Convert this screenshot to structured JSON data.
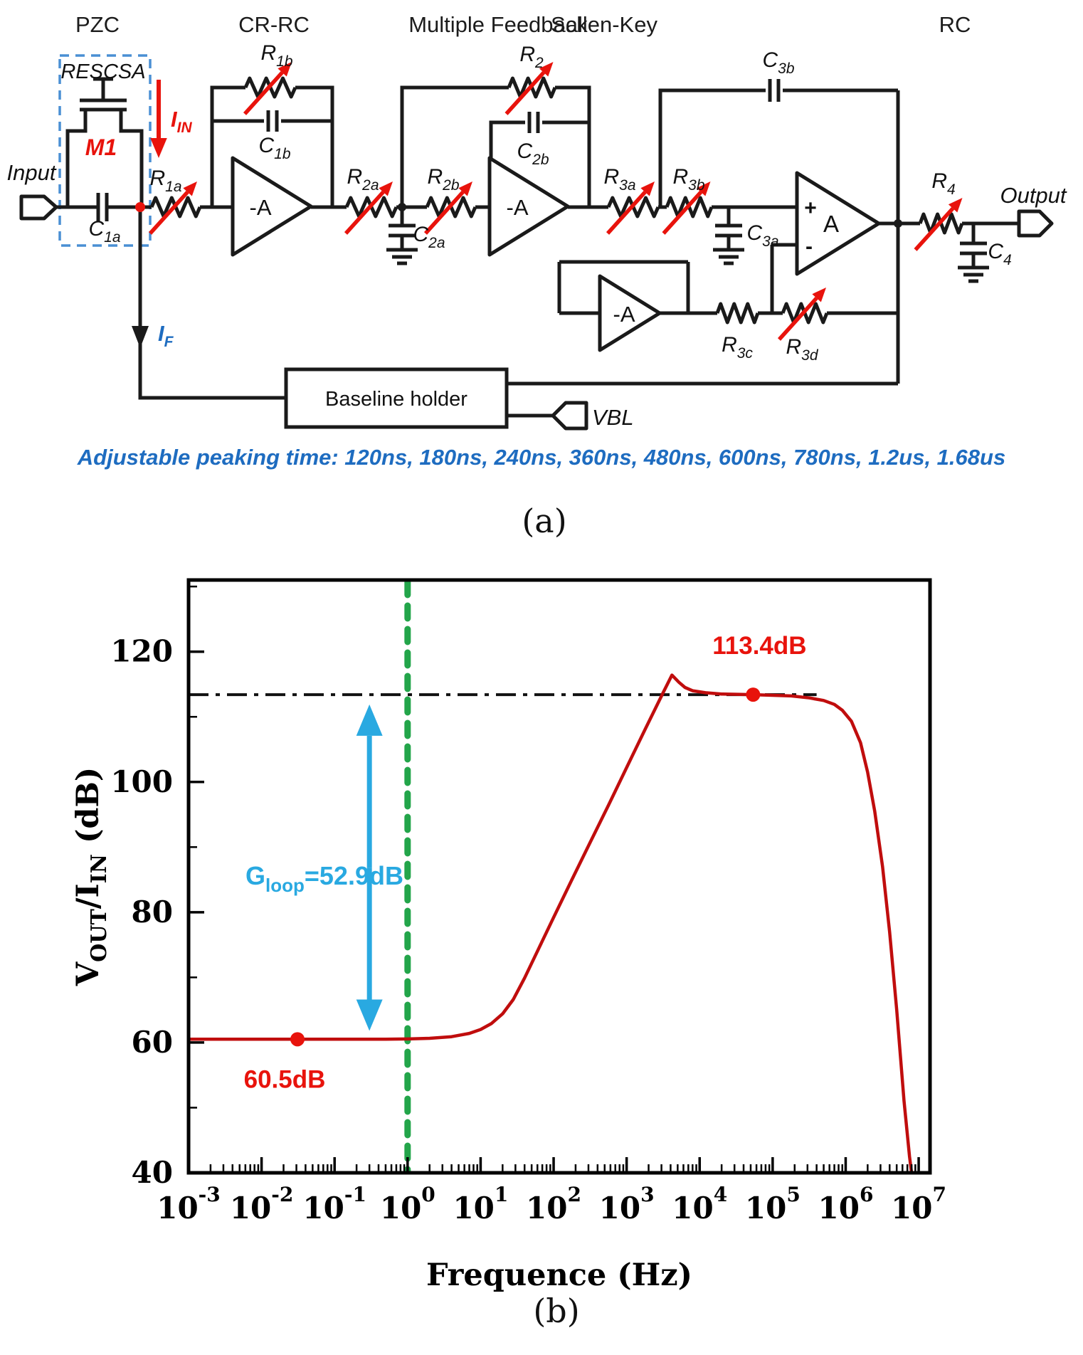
{
  "figure": {
    "panel_a_label": "(a)",
    "panel_b_label": "(b)"
  },
  "circuit": {
    "stages": {
      "pzc": "PZC",
      "crrc": "CR-RC",
      "mfb": "Multiple Feedback",
      "sk": "Sallen-Key",
      "rc": "RC"
    },
    "terminals": {
      "input": "Input",
      "output": "Output",
      "vbl": "VBL"
    },
    "blocks": {
      "rescsa": "RESCSA",
      "m1": "M1",
      "baseline_holder": "Baseline holder"
    },
    "currents": {
      "iin": {
        "main": "I",
        "sub": "IN"
      },
      "if": {
        "main": "I",
        "sub": "F"
      }
    },
    "amps": {
      "crrc": "-A",
      "mfb": "-A",
      "buffer": "-A",
      "sk": "A",
      "sk_plus": "+",
      "sk_minus": "-"
    },
    "components": {
      "c1a": {
        "main": "C",
        "sub": "1a"
      },
      "r1a": {
        "main": "R",
        "sub": "1a"
      },
      "r1b": {
        "main": "R",
        "sub": "1b"
      },
      "c1b": {
        "main": "C",
        "sub": "1b"
      },
      "r2a": {
        "main": "R",
        "sub": "2a"
      },
      "c2a": {
        "main": "C",
        "sub": "2a"
      },
      "r2b": {
        "main": "R",
        "sub": "2b"
      },
      "r2": {
        "main": "R",
        "sub": "2"
      },
      "c2b": {
        "main": "C",
        "sub": "2b"
      },
      "r3a": {
        "main": "R",
        "sub": "3a"
      },
      "r3b": {
        "main": "R",
        "sub": "3b"
      },
      "c3a": {
        "main": "C",
        "sub": "3a"
      },
      "c3b": {
        "main": "C",
        "sub": "3b"
      },
      "r3c": {
        "main": "R",
        "sub": "3c"
      },
      "r3d": {
        "main": "R",
        "sub": "3d"
      },
      "r4": {
        "main": "R",
        "sub": "4"
      },
      "c4": {
        "main": "C",
        "sub": "4"
      }
    },
    "caption": "Adjustable peaking time: 120ns, 180ns, 240ns, 360ns, 480ns, 600ns, 780ns, 1.2us, 1.68us",
    "colors": {
      "wire": "#1a1a1a",
      "red": "#e8130c",
      "blue_text": "#1e6cc0",
      "dashed_box": "#4a8fd4"
    }
  },
  "chart_data": {
    "type": "line",
    "title": "",
    "xlabel": "Frequence (Hz)",
    "ylabel": "VOUT/IIN (dB)",
    "ylabel_parts": [
      {
        "t": "V"
      },
      {
        "t": "OUT",
        "sub": true
      },
      {
        "t": "/I"
      },
      {
        "t": "IN",
        "sub": true
      },
      {
        "t": " (dB)"
      }
    ],
    "x_scale": "log",
    "tick_base": "10",
    "xticks_exponents": [
      -3,
      -2,
      -1,
      0,
      1,
      2,
      3,
      4,
      5,
      6,
      7
    ],
    "yticks": [
      40,
      60,
      80,
      100,
      120
    ],
    "y_minor_step": 10,
    "xlim": [
      0.001,
      14300000
    ],
    "ylim": [
      40,
      131
    ],
    "grid": "off",
    "legend": "none",
    "series": [
      {
        "name": "VOUT/IIN transfer function",
        "color": "#c00d0d",
        "points": [
          [
            0.001,
            60.5
          ],
          [
            0.01,
            60.5
          ],
          [
            0.1,
            60.5
          ],
          [
            0.5,
            60.5
          ],
          [
            1,
            60.55
          ],
          [
            2,
            60.65
          ],
          [
            4,
            60.9
          ],
          [
            7,
            61.4
          ],
          [
            10,
            62.0
          ],
          [
            14,
            62.9
          ],
          [
            20,
            64.4
          ],
          [
            28,
            66.6
          ],
          [
            40,
            69.9
          ],
          [
            63,
            74.5
          ],
          [
            100,
            79.2
          ],
          [
            178,
            85.0
          ],
          [
            316,
            90.7
          ],
          [
            562,
            96.4
          ],
          [
            1000,
            102.2
          ],
          [
            1780,
            108.0
          ],
          [
            3160,
            113.7
          ],
          [
            4170,
            116.4
          ],
          [
            5200,
            115.3
          ],
          [
            6300,
            114.5
          ],
          [
            8000,
            114.0
          ],
          [
            12000,
            113.7
          ],
          [
            20000,
            113.5
          ],
          [
            32000,
            113.45
          ],
          [
            54000,
            113.4
          ],
          [
            100000,
            113.3
          ],
          [
            180000,
            113.2
          ],
          [
            320000,
            112.9
          ],
          [
            500000,
            112.5
          ],
          [
            700000,
            111.9
          ],
          [
            900000,
            111.0
          ],
          [
            1200000,
            109.3
          ],
          [
            1600000,
            106.0
          ],
          [
            2000000,
            101.5
          ],
          [
            2500000,
            95.5
          ],
          [
            3200000,
            87.0
          ],
          [
            4000000,
            77.0
          ],
          [
            5000000,
            65.0
          ],
          [
            6300000,
            51.0
          ],
          [
            7500000,
            42.5
          ],
          [
            8000000,
            40.0
          ]
        ]
      }
    ],
    "markers": [
      {
        "f": 0.031,
        "db": 60.5,
        "label": "60.5dB"
      },
      {
        "f": 54000,
        "db": 113.4,
        "label": "113.4dB"
      }
    ],
    "reference_lines": {
      "hline": {
        "db": 113.4,
        "f_from": 0.001,
        "f_to": 400000,
        "style": "dashdot",
        "color": "#111111"
      },
      "vline": {
        "f": 1.0,
        "style": "dashed",
        "color": "#23a54a"
      }
    },
    "gain_arrow": {
      "f": 0.3,
      "db_from": 61.8,
      "db_to": 111.9,
      "color": "#29a9e1",
      "label": {
        "main": "G",
        "sub": "loop",
        "rest": "=52.9dB"
      }
    },
    "marker_color": "#e8130c"
  }
}
